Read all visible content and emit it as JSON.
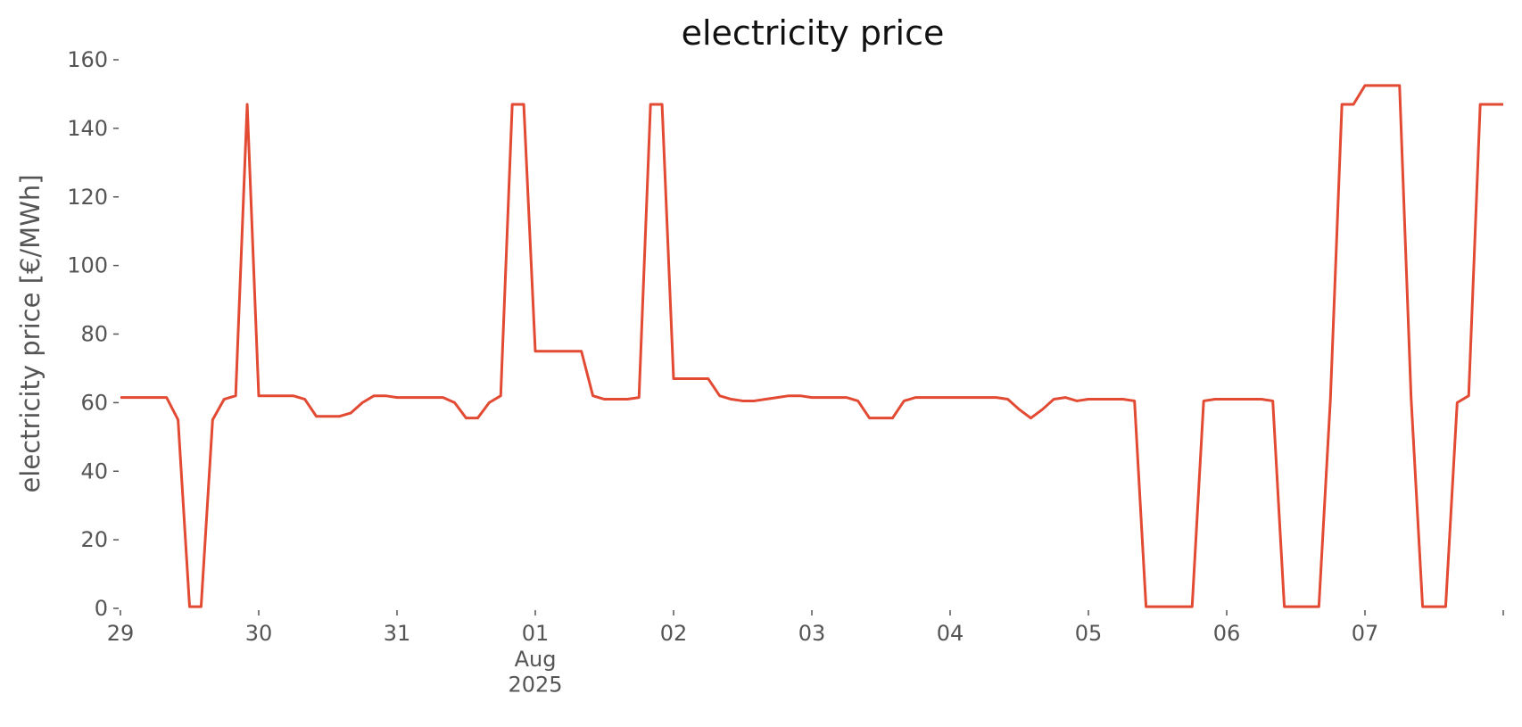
{
  "chart_data": {
    "type": "line",
    "title": "electricity price",
    "y_label": "electricity price [€/MWh]",
    "xlim": [
      "2025-07-29",
      "2025-08-08"
    ],
    "xticks": [
      {
        "value": "2025-07-29",
        "label": "29"
      },
      {
        "value": "2025-07-30",
        "label": "30"
      },
      {
        "value": "2025-07-31",
        "label": "31"
      },
      {
        "value": "2025-08-01",
        "label": "01\nAug\n2025"
      },
      {
        "value": "2025-08-02",
        "label": "02"
      },
      {
        "value": "2025-08-03",
        "label": "03"
      },
      {
        "value": "2025-08-04",
        "label": "04"
      },
      {
        "value": "2025-08-05",
        "label": "05"
      },
      {
        "value": "2025-08-06",
        "label": "06"
      },
      {
        "value": "2025-08-07",
        "label": "07"
      },
      {
        "value": "2025-08-08",
        "label": null
      }
    ],
    "ylim": [
      0,
      160
    ],
    "yticks": [
      0,
      20,
      40,
      60,
      80,
      100,
      120,
      140,
      160
    ],
    "grid": false,
    "series": [
      {
        "name": "electricity price",
        "color": "#e24a33",
        "values": [
          61.5,
          61.5,
          61.5,
          61.5,
          61.5,
          55,
          0.5,
          0.5,
          55,
          61,
          62,
          147,
          62,
          62,
          62,
          62,
          61,
          56,
          56,
          56,
          57,
          60,
          62,
          62,
          61.5,
          61.5,
          61.5,
          61.5,
          61.5,
          60,
          55.5,
          55.5,
          60,
          62,
          147,
          147,
          75,
          75,
          75,
          75,
          75,
          62,
          61,
          61,
          61,
          61.5,
          147,
          147,
          67,
          67,
          67,
          67,
          62,
          61,
          60.5,
          60.5,
          61,
          61.5,
          62,
          62,
          61.5,
          61.5,
          61.5,
          61.5,
          60.5,
          55.5,
          55.5,
          55.5,
          60.5,
          61.5,
          61.5,
          61.5,
          61.5,
          61.5,
          61.5,
          61.5,
          61.5,
          61,
          58,
          55.5,
          58,
          61,
          61.5,
          60.5,
          61,
          61,
          61,
          61,
          60.5,
          0.5,
          0.5,
          0.5,
          0.5,
          0.5,
          60.5,
          61,
          61,
          61,
          61,
          61,
          60.5,
          0.5,
          0.5,
          0.5,
          0.5,
          61,
          147,
          147,
          152.5,
          152.5,
          152.5,
          152.5,
          61.5,
          0.5,
          0.5,
          0.5,
          60,
          62,
          147,
          147,
          147
        ]
      }
    ]
  }
}
